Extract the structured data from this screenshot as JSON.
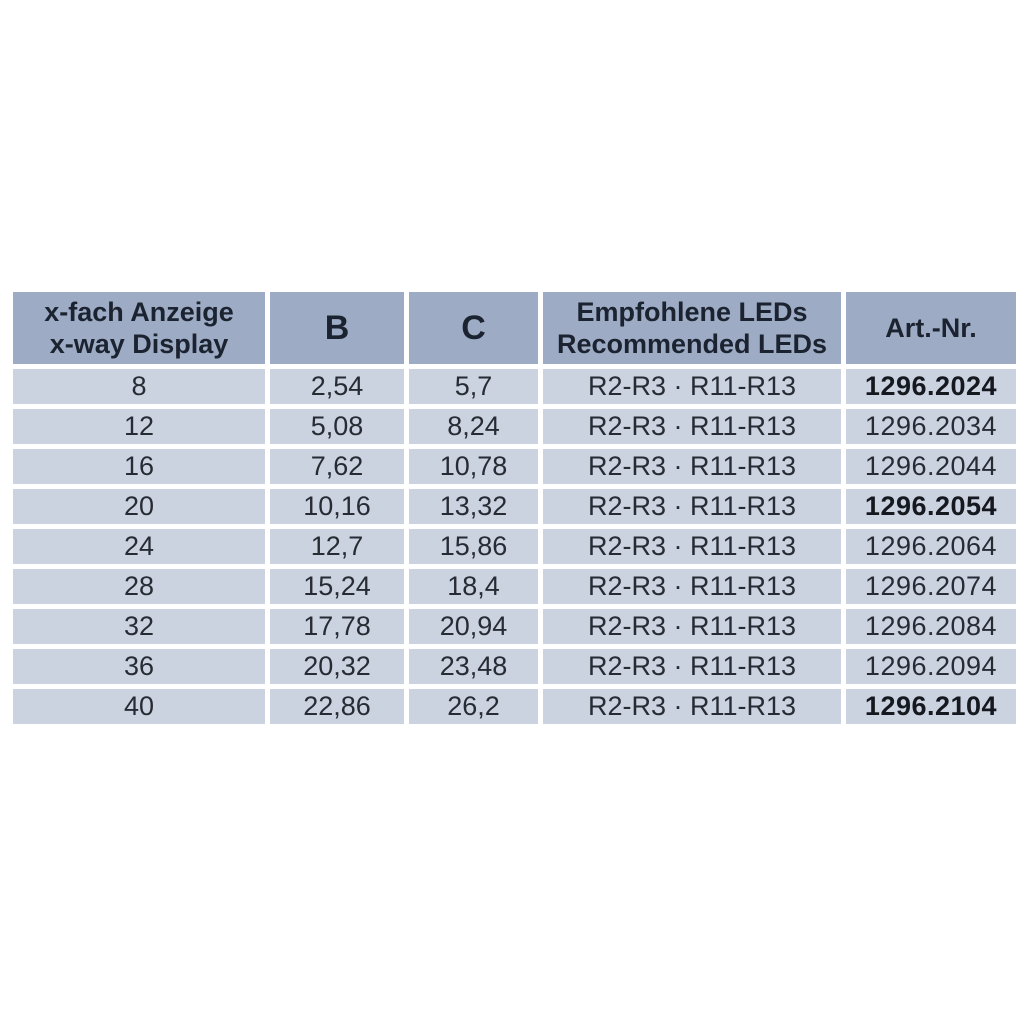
{
  "page": {
    "background": "#ffffff"
  },
  "table": {
    "colors": {
      "header_bg": "#9dabc5",
      "row_bg": "#cbd2e0",
      "gap": "#ffffff",
      "header_text": "#1c2330",
      "cell_text": "#272c34",
      "bold_text": "#15181e"
    },
    "header": {
      "display_line1": "x-fach Anzeige",
      "display_line2": "x-way Display",
      "b": "B",
      "c": "C",
      "leds_line1": "Empfohlene LEDs",
      "leds_line2": "Recommended LEDs",
      "art": "Art.-Nr."
    },
    "rows": [
      {
        "display": "8",
        "b": "2,54",
        "c": "5,7",
        "leds": "R2-R3 · R11-R13",
        "art_nr": "1296.2024",
        "art_bold": true
      },
      {
        "display": "12",
        "b": "5,08",
        "c": "8,24",
        "leds": "R2-R3 · R11-R13",
        "art_nr": "1296.2034",
        "art_bold": false
      },
      {
        "display": "16",
        "b": "7,62",
        "c": "10,78",
        "leds": "R2-R3 · R11-R13",
        "art_nr": "1296.2044",
        "art_bold": false
      },
      {
        "display": "20",
        "b": "10,16",
        "c": "13,32",
        "leds": "R2-R3 · R11-R13",
        "art_nr": "1296.2054",
        "art_bold": true
      },
      {
        "display": "24",
        "b": "12,7",
        "c": "15,86",
        "leds": "R2-R3 · R11-R13",
        "art_nr": "1296.2064",
        "art_bold": false
      },
      {
        "display": "28",
        "b": "15,24",
        "c": "18,4",
        "leds": "R2-R3 · R11-R13",
        "art_nr": "1296.2074",
        "art_bold": false
      },
      {
        "display": "32",
        "b": "17,78",
        "c": "20,94",
        "leds": "R2-R3 · R11-R13",
        "art_nr": "1296.2084",
        "art_bold": false
      },
      {
        "display": "36",
        "b": "20,32",
        "c": "23,48",
        "leds": "R2-R3 · R11-R13",
        "art_nr": "1296.2094",
        "art_bold": false
      },
      {
        "display": "40",
        "b": "22,86",
        "c": "26,2",
        "leds": "R2-R3 · R11-R13",
        "art_nr": "1296.2104",
        "art_bold": true
      }
    ]
  }
}
